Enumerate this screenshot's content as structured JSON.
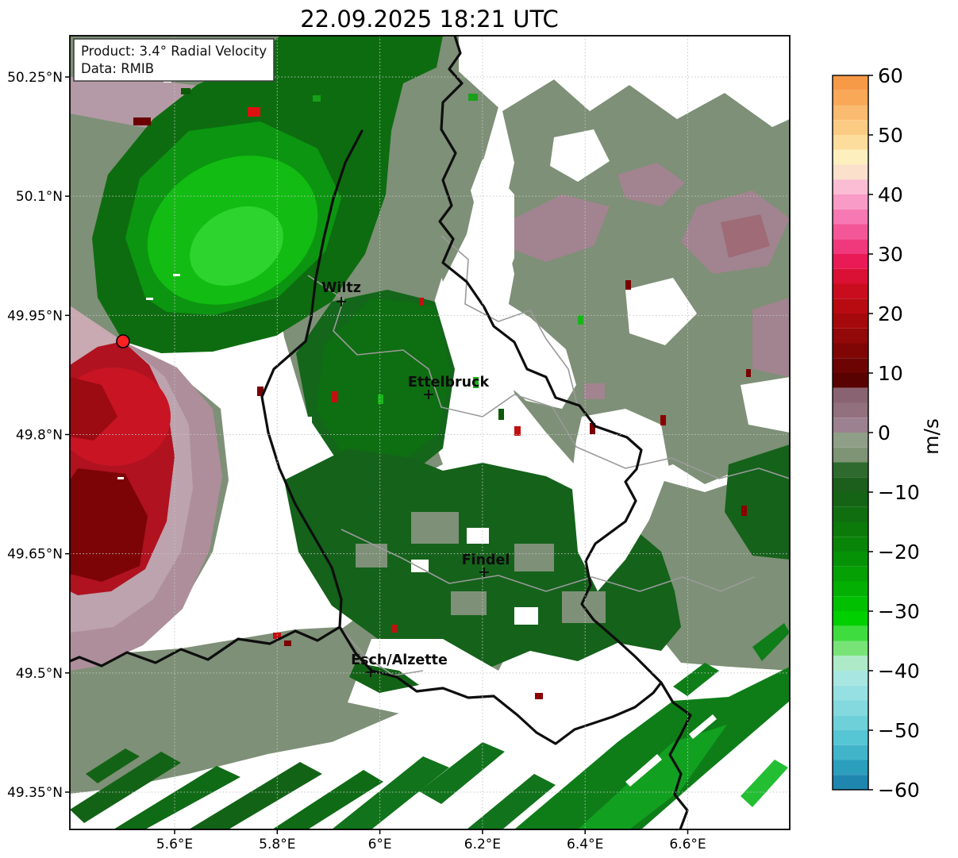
{
  "title": "22.09.2025 18:21 UTC",
  "info_box": {
    "line1": "Product: 3.4° Radial Velocity",
    "line2": "Data: RMIB"
  },
  "map": {
    "cities": [
      {
        "name": "Wiltz"
      },
      {
        "name": "Ettelbruck"
      },
      {
        "name": "Findel"
      },
      {
        "name": "Esch/Alzette"
      }
    ],
    "radar_marker": "red-dot"
  },
  "axes": {
    "lat_ticks": [
      {
        "label": "50.25°N",
        "value": 50.25
      },
      {
        "label": "50.1°N",
        "value": 50.1
      },
      {
        "label": "49.95°N",
        "value": 49.95
      },
      {
        "label": "49.8°N",
        "value": 49.8
      },
      {
        "label": "49.65°N",
        "value": 49.65
      },
      {
        "label": "49.5°N",
        "value": 49.5
      },
      {
        "label": "49.35°N",
        "value": 49.35
      }
    ],
    "lon_ticks": [
      {
        "label": "5.6°E",
        "value": 5.6
      },
      {
        "label": "5.8°E",
        "value": 5.8
      },
      {
        "label": "6°E",
        "value": 6.0
      },
      {
        "label": "6.2°E",
        "value": 6.2
      },
      {
        "label": "6.4°E",
        "value": 6.4
      },
      {
        "label": "6.6°E",
        "value": 6.6
      }
    ]
  },
  "colorbar": {
    "unit": "m/s",
    "tick_values": [
      60,
      50,
      40,
      30,
      20,
      10,
      0,
      -10,
      -20,
      -30,
      -40,
      -50,
      -60
    ],
    "tick_labels": [
      "60",
      "50",
      "40",
      "30",
      "20",
      "10",
      "0",
      "−10",
      "−20",
      "−30",
      "−40",
      "−50",
      "−60"
    ]
  },
  "chart_data": {
    "type": "heatmap",
    "subtype": "doppler-radar-radial-velocity-map",
    "title": "22.09.2025 18:21 UTC",
    "product": "3.4° Radial Velocity",
    "data_source": "RMIB",
    "units": "m/s",
    "value_range": [
      -60,
      60
    ],
    "xlabel_ticks_deg_e": [
      5.6,
      5.8,
      6.0,
      6.2,
      6.4,
      6.6
    ],
    "ylabel_ticks_deg_n": [
      50.25,
      50.1,
      49.95,
      49.8,
      49.65,
      49.5,
      49.35
    ],
    "lon_range_deg_e": [
      5.4,
      6.8
    ],
    "lat_range_deg_n": [
      49.3,
      50.3
    ],
    "grid": true,
    "legend_position": "right-colorbar",
    "radar_site_estimate": {
      "lon_deg_e": 5.5,
      "lat_deg_n": 49.92
    },
    "city_markers": [
      {
        "name": "Wiltz",
        "lon_deg_e": 5.93,
        "lat_deg_n": 49.97
      },
      {
        "name": "Ettelbruck",
        "lon_deg_e": 6.1,
        "lat_deg_n": 49.85
      },
      {
        "name": "Findel",
        "lon_deg_e": 6.2,
        "lat_deg_n": 49.63
      },
      {
        "name": "Esch/Alzette",
        "lon_deg_e": 5.98,
        "lat_deg_n": 49.5
      }
    ],
    "velocity_field_summary": [
      {
        "area": "lobe northeast of radar site (upper left)",
        "radial_velocity_m_s": "-5 to -30, toward radar (greens)"
      },
      {
        "area": "lobe southwest of radar site (left edge)",
        "radial_velocity_m_s": "+10 to +25, away from radar (reds, dark-red core)"
      },
      {
        "area": "ring/transition around radar lobes",
        "radial_velocity_m_s": "0 to +8 (gray-mauve)"
      },
      {
        "area": "broad center and east",
        "radial_velocity_m_s": "-5 to 0 (gray-green) with mauve 0 to +8 patches in northeast"
      },
      {
        "area": "center-south around Findel",
        "radial_velocity_m_s": "-5 to -15 (dark green)"
      },
      {
        "area": "south and southeast diagonal bands",
        "radial_velocity_m_s": "-10 to -30 (green streaks)"
      },
      {
        "area": "white zones",
        "radial_velocity_m_s": "no data"
      }
    ],
    "colorbar_stops": [
      [
        60,
        57.5,
        "#F79A47"
      ],
      [
        57.5,
        55,
        "#F8A857"
      ],
      [
        55,
        52.5,
        "#FABB70"
      ],
      [
        52.5,
        50,
        "#FBCB84"
      ],
      [
        50,
        47.5,
        "#FCDD9B"
      ],
      [
        47.5,
        45,
        "#FDEFBE"
      ],
      [
        45,
        42.5,
        "#FBE0CC"
      ],
      [
        42.5,
        40,
        "#FABDD3"
      ],
      [
        40,
        37.5,
        "#F89BC6"
      ],
      [
        37.5,
        35,
        "#F679B3"
      ],
      [
        35,
        32.5,
        "#F35798"
      ],
      [
        32.5,
        30,
        "#EF397C"
      ],
      [
        30,
        27.5,
        "#E91A55"
      ],
      [
        27.5,
        25,
        "#DA1134"
      ],
      [
        25,
        22.5,
        "#C90D1E"
      ],
      [
        22.5,
        20,
        "#B80B11"
      ],
      [
        20,
        17.5,
        "#A5090C"
      ],
      [
        17.5,
        15,
        "#930808"
      ],
      [
        15,
        12.5,
        "#800606"
      ],
      [
        12.5,
        10,
        "#6C0404"
      ],
      [
        10,
        7.5,
        "#590202"
      ],
      [
        7.5,
        5,
        "#8A6372"
      ],
      [
        5,
        2.5,
        "#93707E"
      ],
      [
        2.5,
        0,
        "#9C8190"
      ],
      [
        0,
        -2.5,
        "#8F9E86"
      ],
      [
        -2.5,
        -5,
        "#7E9474"
      ],
      [
        -5,
        -7.5,
        "#2E6A2E"
      ],
      [
        -7.5,
        -10,
        "#1C5F1C"
      ],
      [
        -10,
        -12.5,
        "#156415"
      ],
      [
        -12.5,
        -15,
        "#106E10"
      ],
      [
        -15,
        -17.5,
        "#0B7A0B"
      ],
      [
        -17.5,
        -20,
        "#088508"
      ],
      [
        -20,
        -22.5,
        "#069206"
      ],
      [
        -22.5,
        -25,
        "#04A004"
      ],
      [
        -25,
        -27.5,
        "#03AF03"
      ],
      [
        -27.5,
        -30,
        "#01BF01"
      ],
      [
        -30,
        -32.5,
        "#00D000"
      ],
      [
        -32.5,
        -35,
        "#3FDC3F"
      ],
      [
        -35,
        -37.5,
        "#78E478"
      ],
      [
        -37.5,
        -40,
        "#AEEAC8"
      ],
      [
        -40,
        -42.5,
        "#A8E6E2"
      ],
      [
        -42.5,
        -45,
        "#97E0E1"
      ],
      [
        -45,
        -47.5,
        "#83D9DE"
      ],
      [
        -47.5,
        -50,
        "#6ED1DA"
      ],
      [
        -50,
        -52.5,
        "#57C6D4"
      ],
      [
        -52.5,
        -55,
        "#41B4CA"
      ],
      [
        -55,
        -57.5,
        "#2C9FBD"
      ],
      [
        -57.5,
        -60,
        "#1F86B0"
      ]
    ]
  }
}
